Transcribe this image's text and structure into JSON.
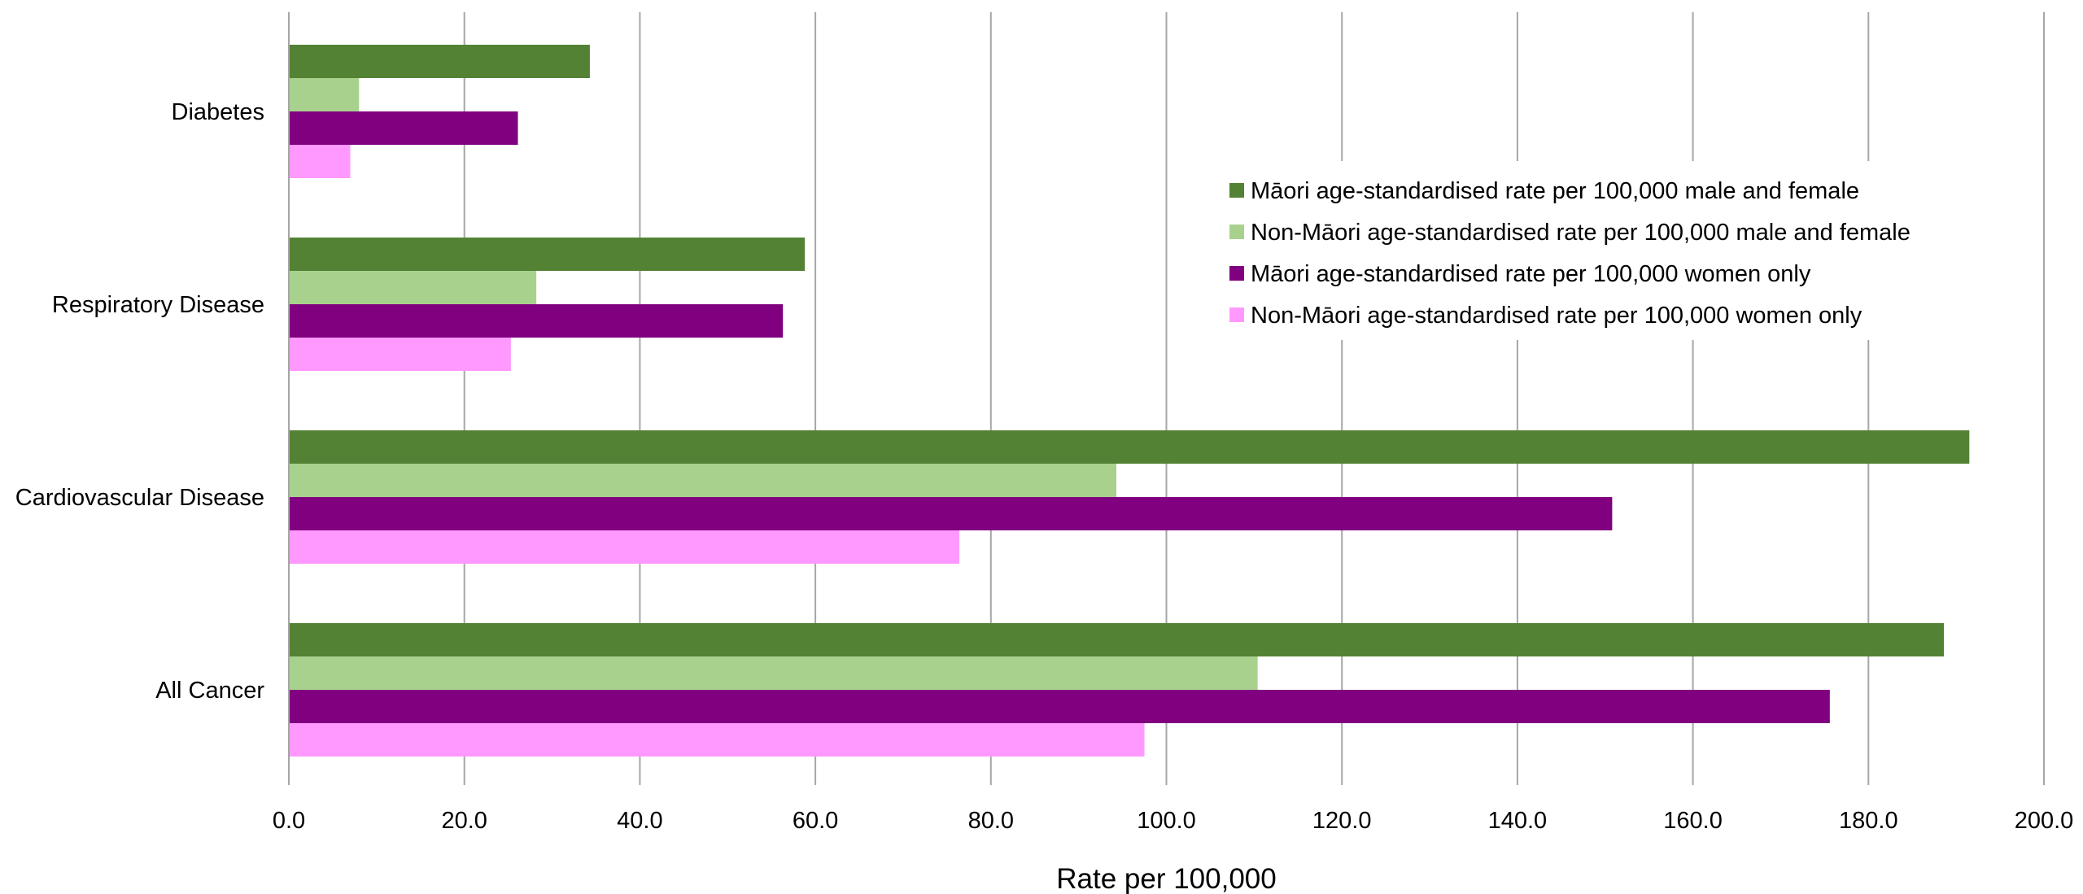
{
  "chart_data": {
    "type": "bar",
    "orientation": "horizontal",
    "categories": [
      "Diabetes",
      "Respiratory Disease",
      "Cardiovascular Disease",
      "All Cancer"
    ],
    "series": [
      {
        "name": "Māori age-standardised rate per 100,000 male and female",
        "color": "#548235",
        "values": [
          34.3,
          58.8,
          191.5,
          188.6
        ]
      },
      {
        "name": "Non-Māori age-standardised rate per 100,000 male and female",
        "color": "#a9d18e",
        "values": [
          8.0,
          28.2,
          94.3,
          110.4
        ]
      },
      {
        "name": "Māori age-standardised rate per 100,000 women only",
        "color": "#800080",
        "values": [
          26.1,
          56.3,
          150.8,
          175.6
        ]
      },
      {
        "name": "Non-Māori age-standardised rate per 100,000 women only",
        "color": "#ff99ff",
        "values": [
          7.0,
          25.3,
          76.4,
          97.5
        ]
      }
    ],
    "xlabel": "Rate per 100,000",
    "ylabel": "",
    "title": "",
    "xlim": [
      0,
      200
    ],
    "xticks": [
      "0.0",
      "20.0",
      "40.0",
      "60.0",
      "80.0",
      "100.0",
      "120.0",
      "140.0",
      "160.0",
      "180.0",
      "200.0"
    ],
    "grid": "vertical",
    "legend_position": "right"
  }
}
